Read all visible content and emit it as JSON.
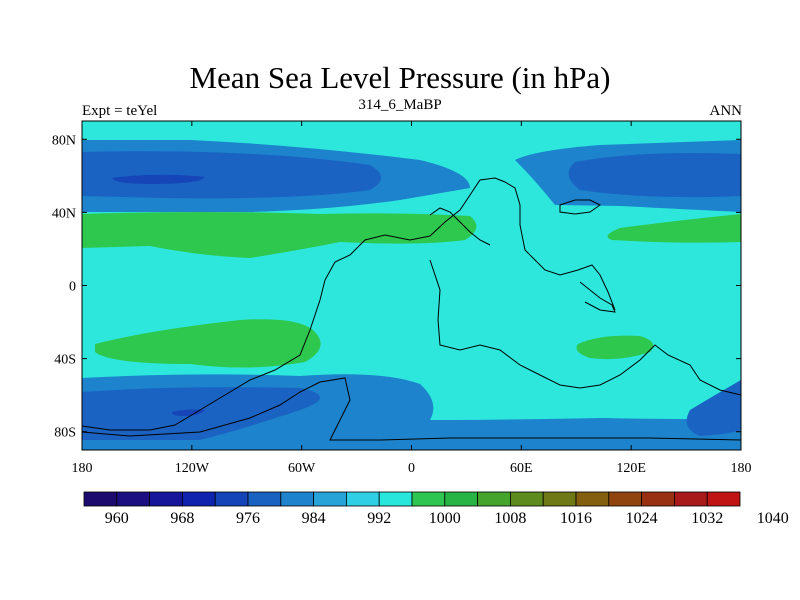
{
  "title": "Mean Sea Level Pressure (in hPa)",
  "subtitle_left": "Expt = teYel",
  "subtitle_center": "314_6_MaBP",
  "subtitle_right": "ANN",
  "lat_labels": [
    "80N",
    "40N",
    "0",
    "40S",
    "80S"
  ],
  "lon_labels": [
    "180",
    "120W",
    "60W",
    "0",
    "60E",
    "120E",
    "180"
  ],
  "colorbar": {
    "colors": [
      "#1e0b6e",
      "#1b0f82",
      "#16169a",
      "#0f23af",
      "#1444b8",
      "#1a62c2",
      "#1f82cd",
      "#27a3d8",
      "#2fd0e6",
      "#29e6dc",
      "#2ec550",
      "#28b445",
      "#44a42b",
      "#5e8b1e",
      "#6f7a16",
      "#845f10",
      "#8f450d",
      "#983112",
      "#a81a1a",
      "#c01414"
    ],
    "tick_labels": [
      "960",
      "968",
      "976",
      "984",
      "992",
      "1000",
      "1008",
      "1016",
      "1024",
      "1032",
      "1040"
    ]
  },
  "colors": {
    "background": "#2de7dc",
    "medium_blue": "#1c83cc",
    "blue": "#15a2d5",
    "dark_blue": "#1a63c2",
    "deep_blue": "#1545b6",
    "green": "#2ec84f",
    "coastline": "#000000"
  }
}
